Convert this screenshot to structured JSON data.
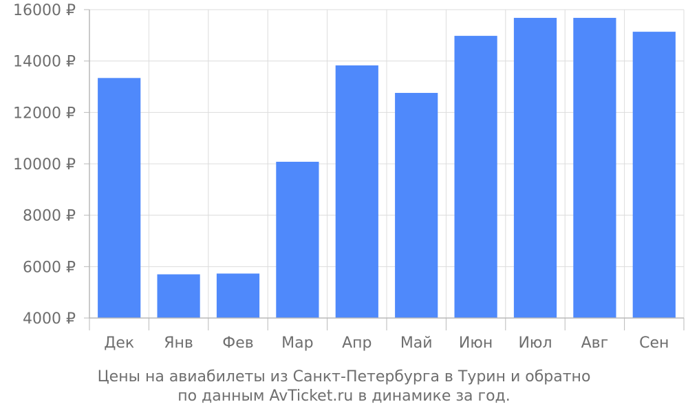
{
  "chart_data": {
    "type": "bar",
    "categories": [
      "Дек",
      "Янв",
      "Фев",
      "Мар",
      "Апр",
      "Май",
      "Июн",
      "Июл",
      "Авг",
      "Сен"
    ],
    "values": [
      13340,
      5700,
      5730,
      10080,
      13830,
      12760,
      14980,
      15680,
      15680,
      15140
    ],
    "ylim": [
      4000,
      16000
    ],
    "yticks": [
      4000,
      6000,
      8000,
      10000,
      12000,
      14000,
      16000
    ],
    "ytick_suffix": " ₽",
    "grid": true,
    "bar_color": "#4f89fb",
    "caption_lines": [
      "Цены на авиабилеты из Санкт-Петербурга в Турин и обратно",
      "по данным AvTicket.ru в динамике за год."
    ]
  }
}
